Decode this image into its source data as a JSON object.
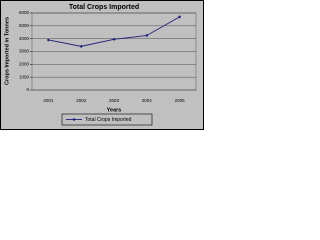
{
  "chart_data": {
    "type": "line",
    "title": "Total Crops Imported",
    "x_label": "Years",
    "y_label": "Crops Imported in Tonnes",
    "categories": [
      "2001",
      "2002",
      "2003",
      "2004",
      "2005"
    ],
    "series": [
      {
        "name": "Total Crops Imported",
        "color": "#1f1f7a",
        "values": [
          3900,
          3400,
          3950,
          4250,
          5700
        ]
      }
    ],
    "ylim": [
      0,
      6000
    ],
    "yticks": [
      0,
      1000,
      2000,
      3000,
      4000,
      5000,
      6000
    ],
    "grid": true,
    "legend": "bottom"
  }
}
